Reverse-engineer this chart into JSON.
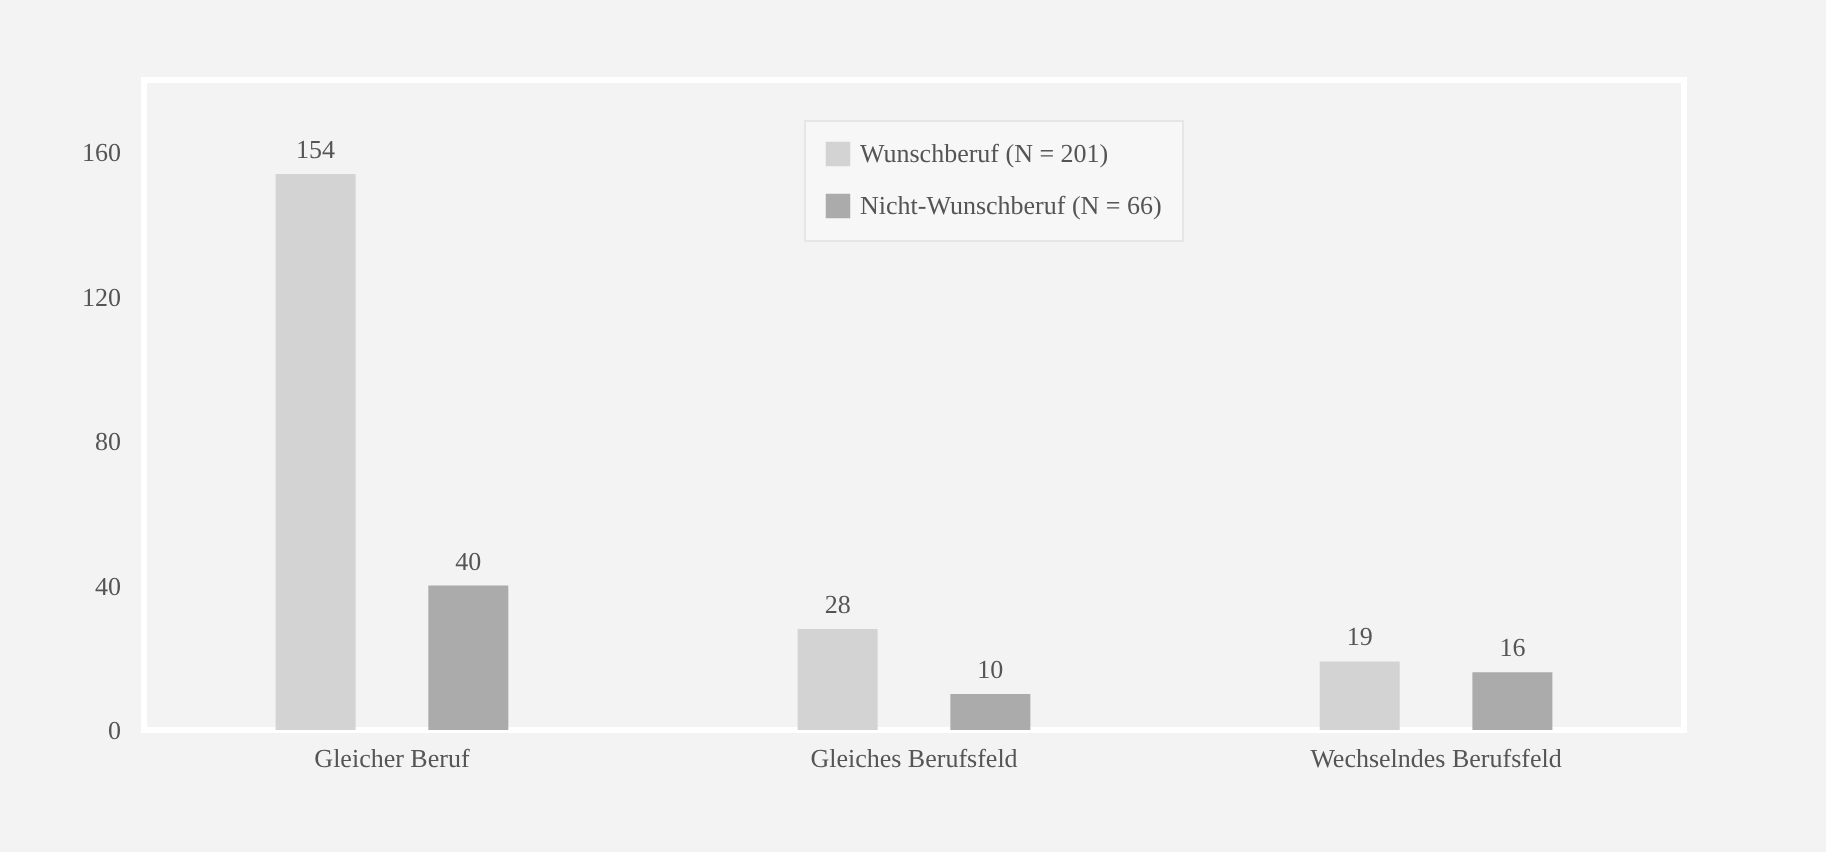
{
  "chart_data": {
    "type": "bar",
    "categories": [
      "Gleicher  Beruf",
      "Gleiches  Berufsfeld",
      "Wechselndes Berufsfeld"
    ],
    "series": [
      {
        "name": "Wunschberuf (N = 201)",
        "color": "#d3d3d3",
        "values": [
          154,
          28,
          19
        ]
      },
      {
        "name": "Nicht-Wunschberuf (N = 66)",
        "color": "#ababab",
        "values": [
          40,
          10,
          16
        ]
      }
    ],
    "ylim": [
      0,
      180
    ],
    "yticks": [
      0,
      40,
      80,
      120,
      160
    ],
    "grid": false,
    "legend": "top",
    "data_labels": true
  }
}
